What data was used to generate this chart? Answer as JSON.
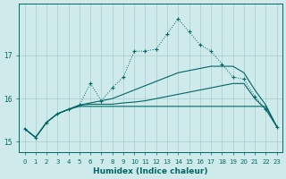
{
  "xlabel": "Humidex (Indice chaleur)",
  "background_color": "#ceeaea",
  "grid_color": "#aacece",
  "line_color": "#006666",
  "x_values": [
    0,
    1,
    2,
    3,
    4,
    5,
    6,
    7,
    8,
    9,
    10,
    11,
    12,
    13,
    14,
    15,
    16,
    17,
    18,
    19,
    20,
    21,
    22,
    23
  ],
  "y_jagged": [
    15.3,
    15.1,
    15.45,
    15.65,
    15.75,
    15.85,
    16.35,
    15.95,
    16.25,
    16.5,
    17.1,
    17.1,
    17.15,
    17.5,
    17.85,
    17.55,
    17.25,
    17.1,
    16.8,
    16.5,
    16.45,
    16.05,
    15.75,
    15.35
  ],
  "y_line_upper": [
    15.3,
    15.1,
    15.45,
    15.65,
    15.75,
    15.85,
    15.9,
    15.95,
    16.0,
    16.1,
    16.2,
    16.3,
    16.4,
    16.5,
    16.6,
    16.65,
    16.7,
    16.75,
    16.75,
    16.75,
    16.6,
    16.2,
    15.85,
    15.35
  ],
  "y_line_mid": [
    15.3,
    15.1,
    15.45,
    15.65,
    15.75,
    15.85,
    15.87,
    15.87,
    15.87,
    15.9,
    15.92,
    15.95,
    16.0,
    16.05,
    16.1,
    16.15,
    16.2,
    16.25,
    16.3,
    16.35,
    16.35,
    16.0,
    15.75,
    15.35
  ],
  "y_flat": [
    15.3,
    15.1,
    15.45,
    15.65,
    15.75,
    15.82,
    15.82,
    15.82,
    15.82,
    15.82,
    15.82,
    15.82,
    15.82,
    15.82,
    15.82,
    15.82,
    15.82,
    15.82,
    15.82,
    15.82,
    15.82,
    15.82,
    15.82,
    15.35
  ],
  "yticks": [
    15,
    16,
    17
  ],
  "ylim": [
    14.75,
    18.2
  ],
  "xlim": [
    -0.5,
    23.5
  ]
}
